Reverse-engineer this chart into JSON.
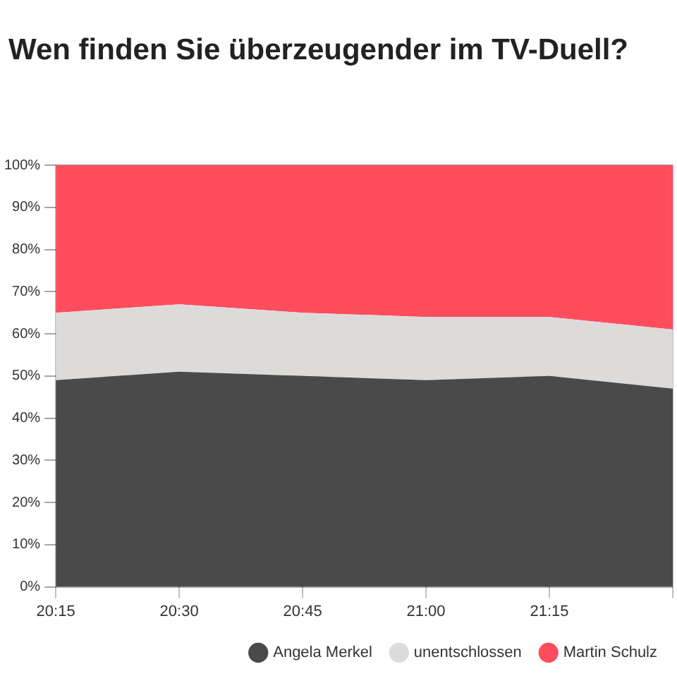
{
  "chart_data": {
    "type": "area",
    "title": "Wen finden Sie überzeugender im TV-Duell?",
    "stacked": true,
    "categories": [
      "20:15",
      "20:30",
      "20:45",
      "21:00",
      "21:15",
      null
    ],
    "series": [
      {
        "name": "Angela Merkel",
        "color": "#4a4a4a",
        "values": [
          49,
          51,
          50,
          49,
          50,
          47
        ]
      },
      {
        "name": "unentschlossen",
        "color": "#dcdbda",
        "values": [
          16,
          16,
          15,
          15,
          14,
          14
        ]
      },
      {
        "name": "Martin Schulz",
        "color": "#ff4d5e",
        "values": [
          35,
          33,
          35,
          36,
          36,
          39
        ]
      }
    ],
    "ylim": [
      0,
      100
    ],
    "yticks": [
      {
        "value": 0,
        "label": "0%"
      },
      {
        "value": 10,
        "label": "10%"
      },
      {
        "value": 20,
        "label": "20%"
      },
      {
        "value": 30,
        "label": "30%"
      },
      {
        "value": 40,
        "label": "40%"
      },
      {
        "value": 50,
        "label": "50%"
      },
      {
        "value": 60,
        "label": "60%"
      },
      {
        "value": 70,
        "label": "70%"
      },
      {
        "value": 80,
        "label": "80%"
      },
      {
        "value": 90,
        "label": "90%"
      },
      {
        "value": 100,
        "label": "100%"
      }
    ],
    "grid": true,
    "legend": "bottom right"
  }
}
